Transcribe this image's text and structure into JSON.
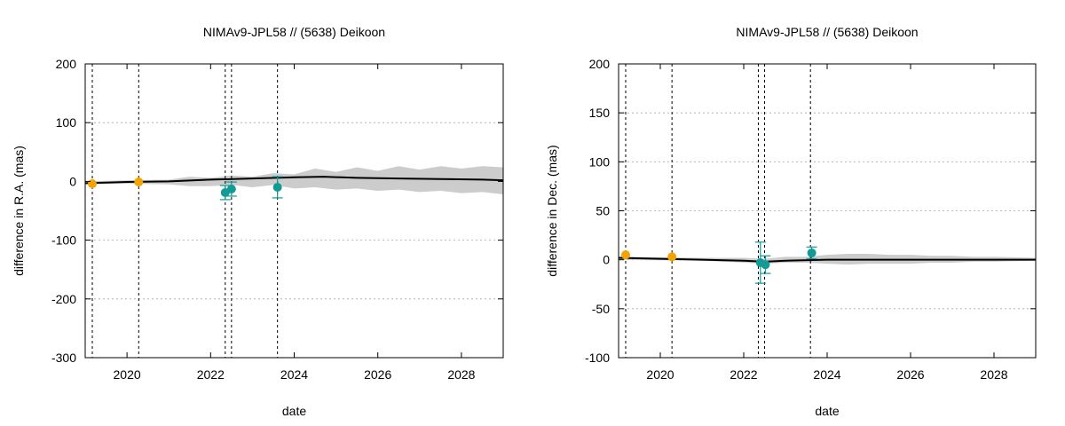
{
  "colors": {
    "orange_points": "#f5a300",
    "teal_points": "#139a94",
    "band": "#cccccc",
    "median_line": "#000000",
    "grid": "#a8a8a8"
  },
  "chart_data": [
    {
      "type": "scatter",
      "title": "NIMAv9-JPL58 // (5638) Deikoon",
      "xlabel": "date",
      "ylabel": "difference in R.A. (mas)",
      "xlim": [
        2019.0,
        2029.0
      ],
      "ylim": [
        -300,
        200
      ],
      "x_ticks": [
        2020,
        2022,
        2024,
        2026,
        2028
      ],
      "y_ticks": [
        -300,
        -200,
        -100,
        0,
        100,
        200
      ],
      "grid": true,
      "vlines": [
        2019.17,
        2020.28,
        2022.35,
        2022.5,
        2023.6
      ],
      "band": {
        "x": [
          2019.0,
          2020.0,
          2021.0,
          2021.5,
          2022.0,
          2022.5,
          2023.0,
          2023.5,
          2024.0,
          2024.5,
          2025.0,
          2025.5,
          2026.0,
          2026.5,
          2027.0,
          2027.5,
          2028.0,
          2028.5,
          2029.0
        ],
        "lower": [
          -5,
          -4,
          -5,
          -8,
          -8,
          -6,
          -10,
          -6,
          -12,
          -10,
          -14,
          -12,
          -16,
          -14,
          -18,
          -16,
          -20,
          -18,
          -22
        ],
        "upper": [
          0,
          2,
          3,
          8,
          6,
          10,
          8,
          14,
          12,
          22,
          16,
          24,
          18,
          26,
          20,
          26,
          22,
          26,
          24
        ]
      },
      "median_line": {
        "x": [
          2019.0,
          2020.0,
          2021.0,
          2022.0,
          2023.0,
          2024.0,
          2024.7,
          2025.5,
          2026.5,
          2027.5,
          2028.5,
          2029.0
        ],
        "y": [
          -3,
          -1,
          0,
          3,
          5,
          7,
          8,
          6,
          5,
          4,
          3,
          2
        ]
      },
      "series": [
        {
          "color": "#f5a300",
          "points": [
            {
              "x": 2019.17,
              "y": -4
            },
            {
              "x": 2020.28,
              "y": -1
            }
          ]
        },
        {
          "color": "#139a94",
          "points": [
            {
              "x": 2022.35,
              "y": -19,
              "err": 12
            },
            {
              "x": 2022.5,
              "y": -13,
              "err": 12
            },
            {
              "x": 2023.6,
              "y": -10,
              "err": 18
            }
          ]
        }
      ]
    },
    {
      "type": "scatter",
      "title": "NIMAv9-JPL58 // (5638) Deikoon",
      "xlabel": "date",
      "ylabel": "difference in Dec. (mas)",
      "xlim": [
        2019.0,
        2029.0
      ],
      "ylim": [
        -100,
        200
      ],
      "x_ticks": [
        2020,
        2022,
        2024,
        2026,
        2028
      ],
      "y_ticks": [
        -100,
        -50,
        0,
        50,
        100,
        150,
        200
      ],
      "grid": true,
      "vlines": [
        2019.17,
        2020.28,
        2022.35,
        2022.5,
        2023.6
      ],
      "band": {
        "x": [
          2019.0,
          2021.0,
          2022.0,
          2022.5,
          2023.0,
          2023.5,
          2024.0,
          2024.5,
          2025.0,
          2025.5,
          2026.0,
          2026.5,
          2027.0,
          2027.5,
          2028.0,
          2029.0
        ],
        "lower": [
          0,
          -1,
          -3,
          -4,
          -3,
          -3,
          -4,
          -5,
          -4,
          -4,
          -4,
          -3,
          -3,
          -2,
          -2,
          -1
        ],
        "upper": [
          3,
          2,
          2,
          1,
          3,
          3,
          5,
          6,
          6,
          5,
          5,
          4,
          4,
          3,
          3,
          2
        ]
      },
      "median_line": {
        "x": [
          2019.0,
          2020.0,
          2021.0,
          2022.0,
          2022.5,
          2023.0,
          2024.0,
          2025.0,
          2026.0,
          2027.0,
          2028.0,
          2029.0
        ],
        "y": [
          2,
          1,
          0,
          -1,
          -2,
          -1,
          0,
          0,
          0,
          0,
          0,
          0
        ]
      },
      "series": [
        {
          "color": "#f5a300",
          "points": [
            {
              "x": 2019.17,
              "y": 5
            },
            {
              "x": 2020.28,
              "y": 3
            }
          ]
        },
        {
          "color": "#139a94",
          "points": [
            {
              "x": 2022.4,
              "y": -3,
              "err": 21
            },
            {
              "x": 2022.52,
              "y": -5,
              "err": 9
            },
            {
              "x": 2023.63,
              "y": 7,
              "err": 6
            }
          ]
        }
      ]
    }
  ]
}
